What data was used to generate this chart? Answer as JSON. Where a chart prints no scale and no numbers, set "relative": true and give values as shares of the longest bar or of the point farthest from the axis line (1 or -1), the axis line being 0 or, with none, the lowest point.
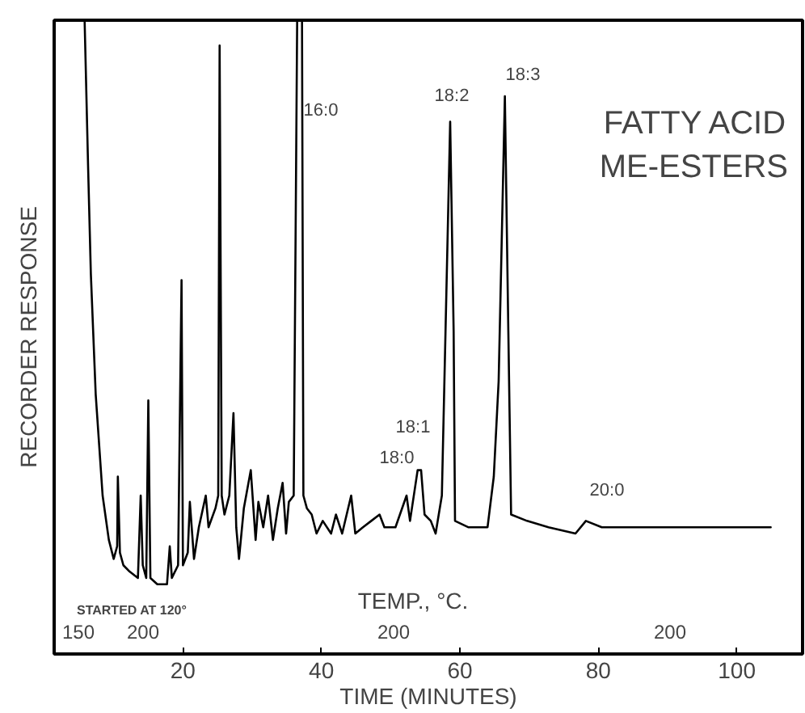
{
  "chart_data": {
    "type": "line",
    "relative": true,
    "title": "FATTY ACID\nME-ESTERS",
    "xlabel": "TIME (MINUTES)",
    "ylabel": "RECORDER RESPONSE",
    "xlim": [
      1.4,
      109.5
    ],
    "xticks": [
      20,
      40,
      60,
      80,
      100
    ],
    "grid": false,
    "marker": "none",
    "line_style": "solid",
    "annotations": [
      "STARTED AT 120°",
      "150",
      "200",
      "200",
      "200",
      "TEMP., °C.",
      "16:0",
      "18:2",
      "18:3",
      "18:1",
      "18:0",
      "20:0"
    ],
    "series": [
      {
        "color": "#000000",
        "x": [
          5.8,
          6.3,
          6.7,
          7.4,
          8.4,
          9.3,
          10.0,
          10.5,
          10.6,
          10.9,
          11.4,
          12.3,
          13.5,
          13.9,
          14.2,
          14.7,
          15.0,
          15.3,
          16.3,
          17.7,
          18.1,
          18.4,
          19.3,
          19.8,
          20.0,
          20.7,
          21.0,
          21.6,
          22.3,
          23.3,
          23.7,
          24.7,
          25.1,
          25.3,
          25.6,
          26.0,
          26.7,
          27.3,
          27.7,
          28.1,
          28.8,
          29.8,
          30.5,
          30.9,
          31.6,
          32.3,
          33.0,
          33.7,
          34.4,
          34.9,
          35.3,
          36.0,
          36.5,
          37.2,
          37.4,
          37.9,
          38.6,
          39.3,
          40.2,
          41.4,
          42.1,
          43.0,
          44.3,
          44.9,
          46.0,
          47.2,
          48.4,
          49.1,
          50.7,
          52.3,
          52.8,
          53.9,
          54.4,
          54.9,
          55.8,
          56.5,
          57.4,
          58.6,
          59.1,
          59.3,
          61.2,
          62.7,
          64.0,
          64.9,
          65.6,
          66.5,
          67.0,
          67.4,
          69.7,
          72.8,
          76.7,
          78.2,
          80.5,
          91.4,
          104.9
        ],
        "values": [
          1.0,
          0.77,
          0.6,
          0.41,
          0.25,
          0.18,
          0.15,
          0.17,
          0.28,
          0.16,
          0.14,
          0.13,
          0.12,
          0.25,
          0.14,
          0.12,
          0.4,
          0.12,
          0.11,
          0.11,
          0.17,
          0.12,
          0.14,
          0.59,
          0.14,
          0.16,
          0.24,
          0.15,
          0.2,
          0.25,
          0.2,
          0.23,
          0.25,
          0.96,
          0.25,
          0.22,
          0.25,
          0.38,
          0.2,
          0.15,
          0.23,
          0.29,
          0.18,
          0.24,
          0.2,
          0.25,
          0.18,
          0.23,
          0.27,
          0.19,
          0.24,
          0.25,
          1.0,
          1.0,
          0.25,
          0.23,
          0.22,
          0.19,
          0.21,
          0.19,
          0.22,
          0.19,
          0.25,
          0.19,
          0.2,
          0.21,
          0.22,
          0.2,
          0.2,
          0.25,
          0.21,
          0.29,
          0.29,
          0.22,
          0.21,
          0.19,
          0.25,
          0.84,
          0.51,
          0.21,
          0.2,
          0.2,
          0.2,
          0.28,
          0.43,
          0.88,
          0.51,
          0.22,
          0.21,
          0.2,
          0.19,
          0.21,
          0.2,
          0.2,
          0.2
        ]
      }
    ]
  }
}
